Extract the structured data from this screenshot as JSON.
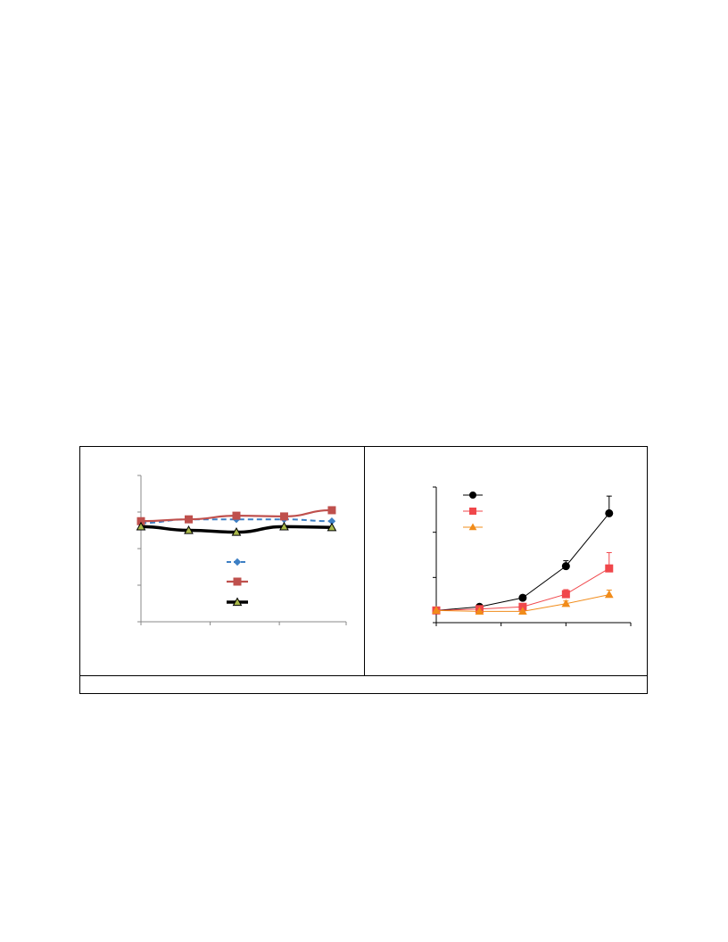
{
  "caption": "",
  "colors": {
    "left_blue": "#3d7fc4",
    "left_red": "#bf504d",
    "left_black": "#000000",
    "left_marker_fill": "#a9b84a",
    "right_black": "#000000",
    "right_red": "#f0474b",
    "right_orange": "#f18c1a",
    "axis": "#888888"
  },
  "chart_data": [
    {
      "type": "line",
      "x": [
        0,
        1,
        2,
        3,
        4
      ],
      "xlim": [
        0,
        4.3
      ],
      "ylim": [
        0,
        4
      ],
      "grid": false,
      "legend_position": "center",
      "series": [
        {
          "values": [
            2.7,
            2.8,
            2.8,
            2.8,
            2.75
          ],
          "style": "dashed",
          "marker": "diamond",
          "color": "#3d7fc4"
        },
        {
          "values": [
            2.75,
            2.8,
            2.9,
            2.88,
            3.05
          ],
          "style": "solid",
          "marker": "square",
          "color": "#bf504d"
        },
        {
          "values": [
            2.6,
            2.5,
            2.45,
            2.6,
            2.58
          ],
          "style": "solid-thick",
          "marker": "triangle",
          "color": "#000000"
        }
      ]
    },
    {
      "type": "line",
      "x": [
        0,
        1,
        2,
        3,
        4
      ],
      "xlim": [
        0,
        4.5
      ],
      "ylim": [
        0,
        3
      ],
      "grid": false,
      "legend_position": "top-left",
      "series": [
        {
          "values": [
            0.27,
            0.35,
            0.55,
            1.25,
            2.42
          ],
          "errors": [
            0,
            0,
            0.06,
            0.12,
            0.38
          ],
          "marker": "circle",
          "color": "#000000"
        },
        {
          "values": [
            0.27,
            0.3,
            0.35,
            0.63,
            1.2
          ],
          "errors": [
            0,
            0,
            0,
            0.1,
            0.35
          ],
          "marker": "square",
          "color": "#f0474b"
        },
        {
          "values": [
            0.27,
            0.25,
            0.25,
            0.42,
            0.62
          ],
          "errors": [
            0,
            0,
            0,
            0.06,
            0.1
          ],
          "marker": "triangle",
          "color": "#f18c1a"
        }
      ]
    }
  ]
}
